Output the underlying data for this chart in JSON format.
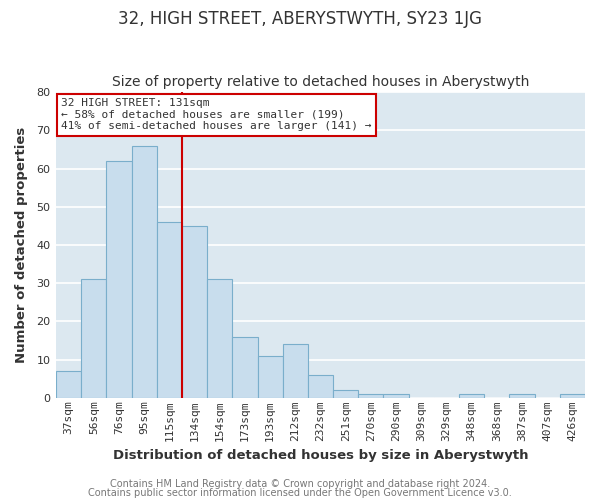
{
  "title": "32, HIGH STREET, ABERYSTWYTH, SY23 1JG",
  "subtitle": "Size of property relative to detached houses in Aberystwyth",
  "xlabel": "Distribution of detached houses by size in Aberystwyth",
  "ylabel": "Number of detached properties",
  "bar_labels": [
    "37sqm",
    "56sqm",
    "76sqm",
    "95sqm",
    "115sqm",
    "134sqm",
    "154sqm",
    "173sqm",
    "193sqm",
    "212sqm",
    "232sqm",
    "251sqm",
    "270sqm",
    "290sqm",
    "309sqm",
    "329sqm",
    "348sqm",
    "368sqm",
    "387sqm",
    "407sqm",
    "426sqm"
  ],
  "bar_values": [
    7,
    31,
    62,
    66,
    46,
    45,
    31,
    16,
    11,
    14,
    6,
    2,
    1,
    1,
    0,
    0,
    1,
    0,
    1,
    0,
    1
  ],
  "bar_color": "#c8dded",
  "bar_edge_color": "#7aaecb",
  "vline_color": "#cc0000",
  "ylim": [
    0,
    80
  ],
  "yticks": [
    0,
    10,
    20,
    30,
    40,
    50,
    60,
    70,
    80
  ],
  "annotation_title": "32 HIGH STREET: 131sqm",
  "annotation_line1": "← 58% of detached houses are smaller (199)",
  "annotation_line2": "41% of semi-detached houses are larger (141) →",
  "annotation_box_color": "#ffffff",
  "annotation_box_edge": "#cc0000",
  "footer1": "Contains HM Land Registry data © Crown copyright and database right 2024.",
  "footer2": "Contains public sector information licensed under the Open Government Licence v3.0.",
  "fig_background": "#ffffff",
  "plot_background": "#dce8f0",
  "grid_color": "#ffffff",
  "title_fontsize": 12,
  "subtitle_fontsize": 10,
  "axis_label_fontsize": 9.5,
  "tick_fontsize": 8,
  "annotation_fontsize": 8,
  "footer_fontsize": 7,
  "vline_bar_index": 5
}
